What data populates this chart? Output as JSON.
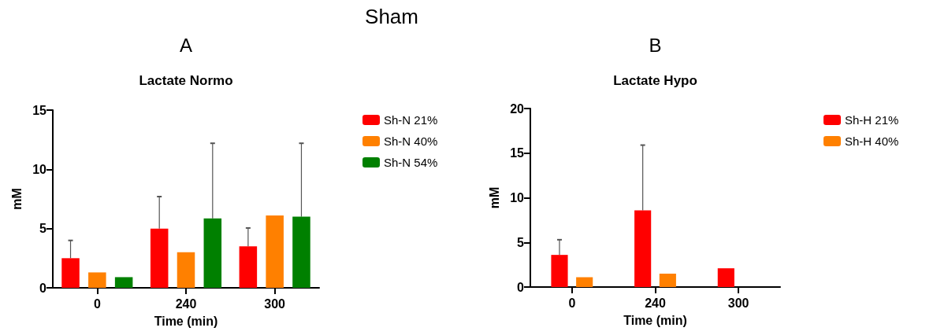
{
  "chart_data": [
    {
      "type": "bar",
      "title": "Lactate Normo",
      "annotations": [
        "Sham",
        "A"
      ],
      "xlabel": "Time (min)",
      "ylabel": "mM",
      "categories": [
        "0",
        "240",
        "300"
      ],
      "series": [
        {
          "name": "Sh-N 21%",
          "color": "#ff0000",
          "values": [
            2.5,
            5.0,
            3.5
          ],
          "errors": [
            [
              2.5,
              4.0
            ],
            [
              5.0,
              7.7
            ],
            [
              3.5,
              5.05
            ]
          ]
        },
        {
          "name": "Sh-N 40%",
          "color": "#ff8000",
          "values": [
            1.3,
            3.0,
            6.1
          ]
        },
        {
          "name": "Sh-N 54%",
          "color": "#008000",
          "values": [
            0.9,
            5.85,
            6.0
          ],
          "errors": [
            null,
            [
              5.85,
              12.2
            ],
            [
              6.0,
              12.2
            ]
          ]
        }
      ],
      "ylim": [
        0,
        15
      ],
      "yticks": [
        0,
        5,
        10,
        15
      ],
      "grid": false,
      "legend": "top right"
    },
    {
      "type": "bar",
      "title": "Lactate Hypo",
      "annotations": [
        "B"
      ],
      "xlabel": "Time (min)",
      "ylabel": "mM",
      "categories": [
        "0",
        "240",
        "300"
      ],
      "series": [
        {
          "name": "Sh-H 21%",
          "color": "#ff0000",
          "values": [
            3.6,
            8.6,
            2.1
          ],
          "errors": [
            [
              3.6,
              5.3
            ],
            [
              8.6,
              15.9
            ],
            null
          ]
        },
        {
          "name": "Sh-H 40%",
          "color": "#ff8000",
          "values": [
            1.1,
            1.5,
            null
          ]
        }
      ],
      "ylim": [
        0,
        20
      ],
      "yticks": [
        0,
        5,
        10,
        15,
        20
      ],
      "grid": false,
      "legend": "top right"
    }
  ]
}
